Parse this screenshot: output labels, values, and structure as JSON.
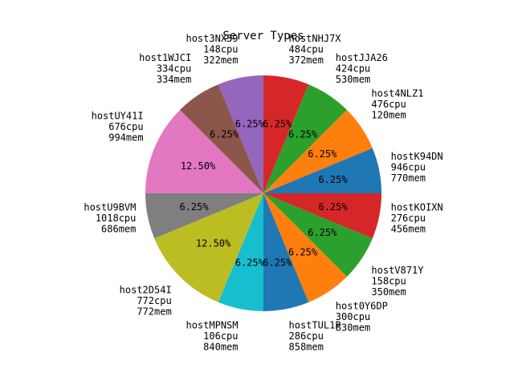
{
  "chart_data": {
    "type": "pie",
    "title": "Server Types",
    "start_angle_deg": 90,
    "direction": "clockwise",
    "slices": [
      {
        "name": "hostNHJ7X",
        "cpu": "484cpu",
        "mem": "372mem",
        "value": 6.25,
        "pct_label": "6.25%",
        "color": "#d62728"
      },
      {
        "name": "hostJJA26",
        "cpu": "424cpu",
        "mem": "530mem",
        "value": 6.25,
        "pct_label": "6.25%",
        "color": "#2ca02c"
      },
      {
        "name": "host4NLZ1",
        "cpu": "476cpu",
        "mem": "120mem",
        "value": 6.25,
        "pct_label": "6.25%",
        "color": "#ff7f0e"
      },
      {
        "name": "hostK94DN",
        "cpu": "946cpu",
        "mem": "770mem",
        "value": 6.25,
        "pct_label": "6.25%",
        "color": "#1f77b4"
      },
      {
        "name": "hostKOIXN",
        "cpu": "276cpu",
        "mem": "456mem",
        "value": 6.25,
        "pct_label": "6.25%",
        "color": "#d62728"
      },
      {
        "name": "hostV871Y",
        "cpu": "158cpu",
        "mem": "350mem",
        "value": 6.25,
        "pct_label": "6.25%",
        "color": "#2ca02c"
      },
      {
        "name": "host0Y6DP",
        "cpu": "300cpu",
        "mem": "830mem",
        "value": 6.25,
        "pct_label": "6.25%",
        "color": "#ff7f0e"
      },
      {
        "name": "hostTUL1P",
        "cpu": "286cpu",
        "mem": "858mem",
        "value": 6.25,
        "pct_label": "6.25%",
        "color": "#1f77b4"
      },
      {
        "name": "hostMPNSM",
        "cpu": "106cpu",
        "mem": "840mem",
        "value": 6.25,
        "pct_label": "6.25%",
        "color": "#17becf"
      },
      {
        "name": "host2D54I",
        "cpu": "772cpu",
        "mem": "772mem",
        "value": 12.5,
        "pct_label": "12.50%",
        "color": "#bcbd22"
      },
      {
        "name": "hostU9BVM",
        "cpu": "1018cpu",
        "mem": "686mem",
        "value": 6.25,
        "pct_label": "6.25%",
        "color": "#7f7f7f"
      },
      {
        "name": "hostUY41I",
        "cpu": "676cpu",
        "mem": "994mem",
        "value": 12.5,
        "pct_label": "12.50%",
        "color": "#e377c2"
      },
      {
        "name": "host1WJCI",
        "cpu": "334cpu",
        "mem": "334mem",
        "value": 6.25,
        "pct_label": "6.25%",
        "color": "#8c564b"
      },
      {
        "name": "host3NX39",
        "cpu": "148cpu",
        "mem": "322mem",
        "value": 6.25,
        "pct_label": "6.25%",
        "color": "#9467bd"
      }
    ]
  }
}
